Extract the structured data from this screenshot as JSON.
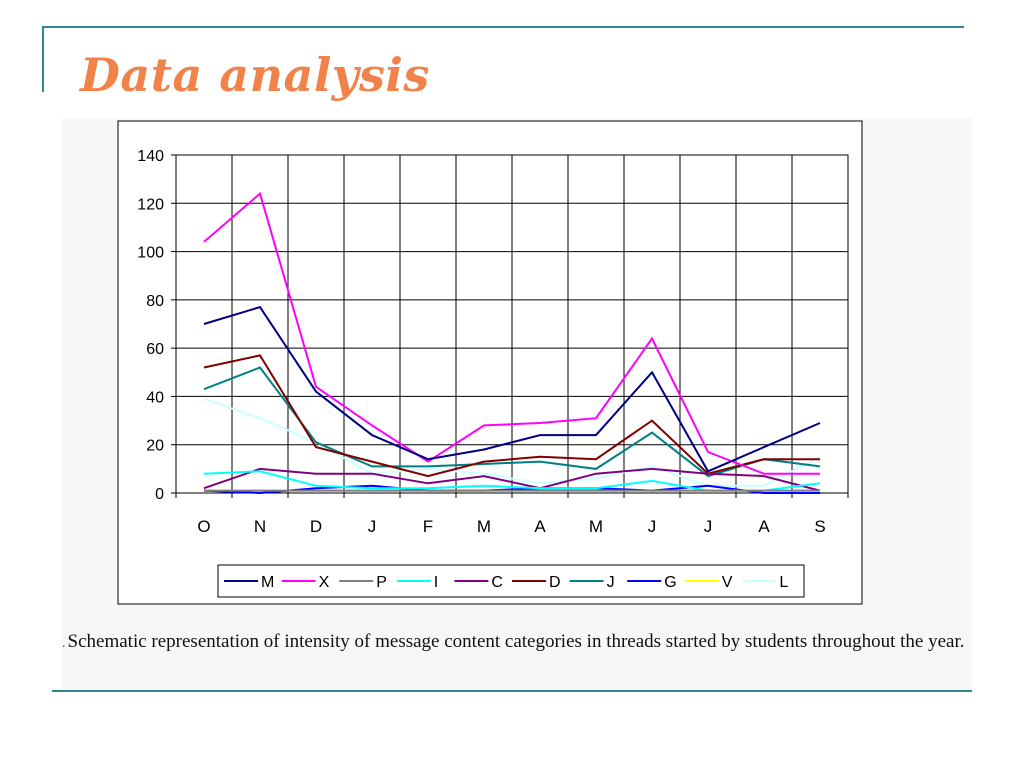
{
  "slide": {
    "title": "Data analysis",
    "caption": "Schematic representation of intensity of message content categories in threads started by students throughout the year.",
    "caption_marker": "."
  },
  "colors": {
    "accent_line": "#2a8c92",
    "title": "#f0824a"
  },
  "chart_data": {
    "type": "line",
    "title": "",
    "xlabel": "",
    "ylabel": "",
    "categories": [
      "O",
      "N",
      "D",
      "J",
      "F",
      "M",
      "A",
      "M",
      "J",
      "J",
      "A",
      "S"
    ],
    "ylim": [
      0,
      140
    ],
    "yticks": [
      0,
      20,
      40,
      60,
      80,
      100,
      120,
      140
    ],
    "grid": true,
    "legend_position": "bottom",
    "series": [
      {
        "name": "M",
        "color": "#000080",
        "values": [
          70,
          77,
          42,
          24,
          14,
          18,
          24,
          24,
          50,
          9,
          19,
          29
        ]
      },
      {
        "name": "X",
        "color": "#ff00ff",
        "values": [
          104,
          124,
          44,
          28,
          13,
          28,
          29,
          31,
          64,
          17,
          8,
          8
        ]
      },
      {
        "name": "P",
        "color": "#808080",
        "values": [
          1,
          1,
          1,
          1,
          1,
          1,
          1,
          1,
          1,
          1,
          1,
          1
        ]
      },
      {
        "name": "I",
        "color": "#00ffff",
        "values": [
          8,
          9,
          3,
          2,
          2,
          3,
          2,
          2,
          5,
          1,
          1,
          4
        ]
      },
      {
        "name": "C",
        "color": "#800080",
        "values": [
          2,
          10,
          8,
          8,
          4,
          7,
          2,
          8,
          10,
          8,
          7,
          1
        ]
      },
      {
        "name": "D",
        "color": "#800000",
        "values": [
          52,
          57,
          19,
          13,
          7,
          13,
          15,
          14,
          30,
          8,
          14,
          14
        ]
      },
      {
        "name": "J",
        "color": "#008080",
        "values": [
          43,
          52,
          21,
          11,
          11,
          12,
          13,
          10,
          25,
          7,
          14,
          11
        ]
      },
      {
        "name": "G",
        "color": "#0000ff",
        "values": [
          1,
          0,
          2,
          3,
          1,
          1,
          2,
          2,
          1,
          3,
          0,
          0
        ]
      },
      {
        "name": "V",
        "color": "#ffff00",
        "values": [
          1,
          1,
          1,
          1,
          1,
          1,
          1,
          1,
          1,
          1,
          1,
          1
        ]
      },
      {
        "name": "L",
        "color": "#ccffff",
        "values": [
          39,
          31,
          21,
          8,
          10,
          8,
          4,
          6,
          11,
          3,
          3,
          15
        ]
      }
    ]
  }
}
